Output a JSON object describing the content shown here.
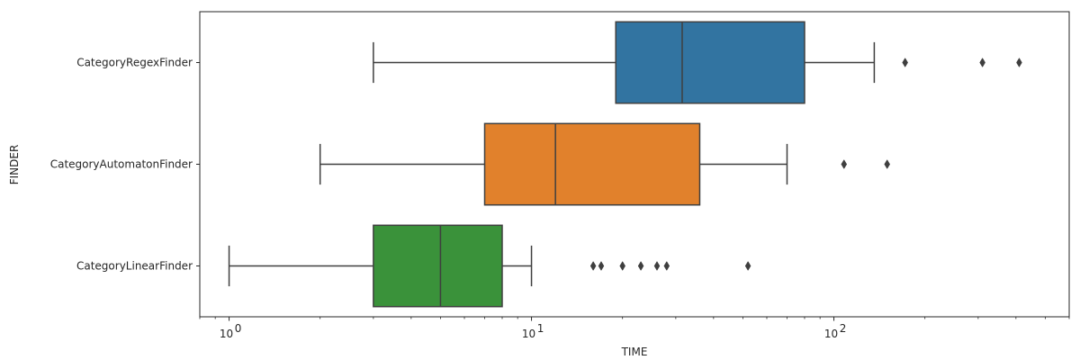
{
  "chart_data": {
    "type": "box",
    "orientation": "horizontal",
    "xlabel": "TIME",
    "ylabel": "FINDER",
    "x_scale": "log",
    "xlim": [
      0.8,
      600
    ],
    "x_ticks": [
      {
        "value": 1,
        "base": "10",
        "exp": "0"
      },
      {
        "value": 10,
        "base": "10",
        "exp": "1"
      },
      {
        "value": 100,
        "base": "10",
        "exp": "2"
      }
    ],
    "series": [
      {
        "name": "CategoryRegexFinder",
        "color": "#3274a1",
        "whisker_low": 3,
        "q1": 19,
        "median": 31.5,
        "q3": 80,
        "whisker_high": 136,
        "outliers": [
          172,
          310,
          410
        ]
      },
      {
        "name": "CategoryAutomatonFinder",
        "color": "#e1812c",
        "whisker_low": 2,
        "q1": 7,
        "median": 12,
        "q3": 36,
        "whisker_high": 70,
        "outliers": [
          108,
          150
        ]
      },
      {
        "name": "CategoryLinearFinder",
        "color": "#3a923a",
        "whisker_low": 1,
        "q1": 3,
        "median": 5,
        "q3": 8,
        "whisker_high": 10,
        "outliers": [
          16,
          17,
          20,
          23,
          26,
          28,
          52
        ]
      }
    ]
  }
}
